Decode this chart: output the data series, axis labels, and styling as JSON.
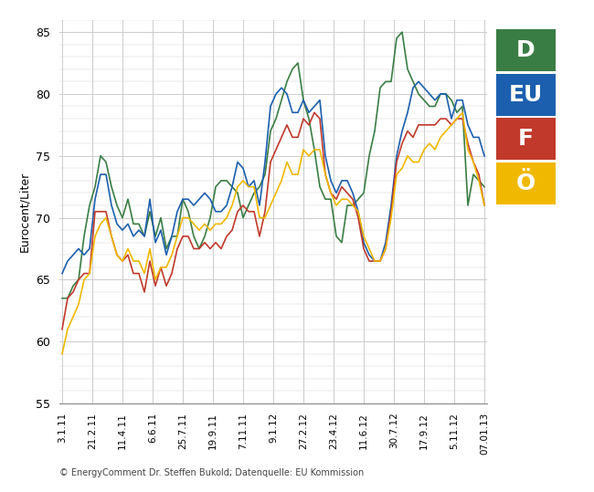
{
  "title": "",
  "ylabel": "Eurocent/Liter",
  "ylim": [
    55,
    86
  ],
  "yticks": [
    55,
    60,
    65,
    70,
    75,
    80,
    85
  ],
  "background_color": "#ffffff",
  "grid_color": "#cccccc",
  "copyright_text": "© EnergyComment Dr. Steffen Bukold; Datenquelle: EU Kommission",
  "xtick_labels": [
    "3.1.11",
    "21.2.11",
    "11.4.11",
    "6.6.11",
    "25.7.11",
    "19.9.11",
    "7.11.11",
    "9.1.12",
    "27.2.12",
    "23.4.12",
    "11.6.12",
    "30.7.12",
    "17.9.12",
    "5.11.12",
    "07.01.13"
  ],
  "legend_labels": [
    "D",
    "EU",
    "F",
    "Ö"
  ],
  "legend_colors": [
    "#3a7d44",
    "#1c5fae",
    "#c0392b",
    "#f0b800"
  ],
  "series": {
    "D": {
      "color": "#3a7d44",
      "values": [
        63.5,
        63.5,
        64.5,
        65.0,
        68.5,
        71.0,
        72.5,
        75.0,
        74.5,
        72.5,
        71.0,
        70.0,
        71.5,
        69.5,
        69.5,
        68.5,
        70.5,
        68.5,
        70.0,
        67.5,
        68.5,
        68.5,
        71.5,
        70.5,
        68.5,
        67.5,
        68.5,
        70.0,
        72.5,
        73.0,
        73.0,
        72.5,
        72.0,
        70.0,
        71.0,
        72.0,
        72.5,
        73.5,
        77.0,
        78.0,
        79.5,
        81.0,
        82.0,
        82.5,
        79.5,
        78.0,
        75.5,
        72.5,
        71.5,
        71.5,
        68.5,
        68.0,
        71.0,
        71.0,
        71.5,
        72.0,
        75.0,
        77.0,
        80.5,
        81.0,
        81.0,
        84.5,
        85.0,
        82.0,
        81.0,
        80.0,
        79.5,
        79.0,
        79.0,
        80.0,
        80.0,
        79.5,
        78.5,
        79.0,
        71.0,
        73.5,
        73.0,
        72.5
      ]
    },
    "EU": {
      "color": "#1c5fae",
      "values": [
        65.5,
        66.5,
        67.0,
        67.5,
        67.0,
        67.5,
        71.5,
        73.5,
        73.5,
        71.0,
        69.5,
        69.0,
        69.5,
        68.5,
        69.0,
        68.5,
        71.5,
        68.0,
        69.0,
        67.0,
        68.5,
        70.5,
        71.5,
        71.5,
        71.0,
        71.5,
        72.0,
        71.5,
        70.5,
        70.5,
        71.0,
        72.5,
        74.5,
        74.0,
        72.5,
        73.0,
        71.0,
        74.5,
        79.0,
        80.0,
        80.5,
        80.0,
        78.5,
        78.5,
        79.5,
        78.5,
        79.0,
        79.5,
        75.0,
        73.0,
        72.0,
        73.0,
        73.0,
        72.0,
        70.5,
        68.0,
        67.0,
        66.5,
        66.5,
        68.0,
        71.0,
        75.0,
        77.0,
        78.5,
        80.5,
        81.0,
        80.5,
        80.0,
        79.5,
        80.0,
        80.0,
        78.0,
        79.5,
        79.5,
        77.5,
        76.5,
        76.5,
        75.0
      ]
    },
    "F": {
      "color": "#c0392b",
      "values": [
        61.0,
        63.5,
        64.0,
        65.0,
        65.5,
        65.5,
        70.5,
        70.5,
        70.5,
        68.5,
        67.0,
        66.5,
        67.0,
        65.5,
        65.5,
        64.0,
        66.5,
        64.5,
        66.0,
        64.5,
        65.5,
        67.5,
        68.5,
        68.5,
        67.5,
        67.5,
        68.0,
        67.5,
        68.0,
        67.5,
        68.5,
        69.0,
        70.5,
        71.0,
        70.5,
        70.5,
        68.5,
        70.5,
        74.5,
        75.5,
        76.5,
        77.5,
        76.5,
        76.5,
        78.0,
        77.5,
        78.5,
        78.0,
        73.5,
        72.0,
        71.5,
        72.5,
        72.0,
        71.5,
        70.0,
        67.5,
        66.5,
        66.5,
        66.5,
        67.5,
        70.5,
        74.5,
        76.0,
        77.0,
        76.5,
        77.5,
        77.5,
        77.5,
        77.5,
        78.0,
        78.0,
        77.5,
        78.0,
        78.0,
        76.0,
        74.5,
        73.5,
        71.0
      ]
    },
    "Oe": {
      "color": "#f0b800",
      "values": [
        59.0,
        61.0,
        62.0,
        63.0,
        65.0,
        65.5,
        68.5,
        69.5,
        70.0,
        68.5,
        67.0,
        66.5,
        67.5,
        66.5,
        66.5,
        65.5,
        67.5,
        65.0,
        66.0,
        66.0,
        67.0,
        68.5,
        70.0,
        70.0,
        69.5,
        69.0,
        69.5,
        69.0,
        69.5,
        69.5,
        70.0,
        71.0,
        72.5,
        73.0,
        72.5,
        72.5,
        70.0,
        70.0,
        71.0,
        72.0,
        73.0,
        74.5,
        73.5,
        73.5,
        75.5,
        75.0,
        75.5,
        75.5,
        73.5,
        72.0,
        71.0,
        71.5,
        71.5,
        71.0,
        70.5,
        68.5,
        67.5,
        66.5,
        66.5,
        67.5,
        70.0,
        73.5,
        74.0,
        75.0,
        74.5,
        74.5,
        75.5,
        76.0,
        75.5,
        76.5,
        77.0,
        77.5,
        78.0,
        78.5,
        75.5,
        74.5,
        73.0,
        71.0
      ]
    }
  },
  "n_points": 78
}
